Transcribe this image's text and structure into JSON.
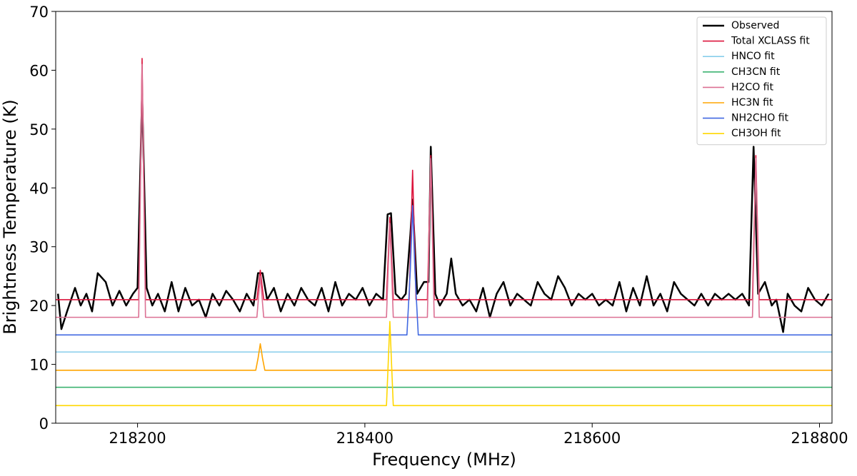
{
  "chart_data": {
    "type": "line",
    "x_label": "Frequency (MHz)",
    "y_label": "Brightness Temperature (K)",
    "xlim": [
      218128,
      218811
    ],
    "ylim": [
      0,
      70
    ],
    "xticks": [
      218200,
      218400,
      218600,
      218800
    ],
    "yticks": [
      0,
      10,
      20,
      30,
      40,
      50,
      60,
      70
    ],
    "legend": "upper right",
    "series": [
      {
        "name": "Observed",
        "color": "#000000",
        "x": [
          218130,
          218133,
          218138,
          218145,
          218150,
          218155,
          218160,
          218165,
          218172,
          218178,
          218184,
          218190,
          218196,
          218200,
          218204,
          218208,
          218213,
          218218,
          218224,
          218230,
          218236,
          218242,
          218248,
          218254,
          218260,
          218266,
          218272,
          218278,
          218284,
          218290,
          218296,
          218302,
          218306,
          218310,
          218314,
          218320,
          218326,
          218332,
          218338,
          218344,
          218350,
          218356,
          218362,
          218368,
          218374,
          218380,
          218386,
          218392,
          218398,
          218404,
          218410,
          218416,
          218420,
          218423,
          218427,
          218432,
          218436,
          218440,
          218442,
          218446,
          218452,
          218456,
          218458,
          218462,
          218466,
          218472,
          218476,
          218480,
          218486,
          218492,
          218498,
          218504,
          218510,
          218516,
          218522,
          218528,
          218534,
          218540,
          218546,
          218552,
          218558,
          218564,
          218570,
          218576,
          218582,
          218588,
          218594,
          218600,
          218606,
          218612,
          218618,
          218624,
          218630,
          218636,
          218642,
          218648,
          218654,
          218660,
          218666,
          218672,
          218678,
          218684,
          218690,
          218696,
          218702,
          218708,
          218714,
          218720,
          218726,
          218732,
          218738,
          218742,
          218746,
          218752,
          218758,
          218762,
          218768,
          218772,
          218778,
          218784,
          218790,
          218796,
          218802,
          218808
        ],
        "values": [
          22,
          16,
          19,
          23,
          20,
          22,
          19,
          25.5,
          24,
          20,
          22.5,
          20,
          22,
          23,
          56,
          23,
          20,
          22,
          19,
          24,
          19,
          23,
          20,
          21,
          18,
          22,
          20,
          22.5,
          21,
          19,
          22,
          20,
          25.5,
          25.5,
          21,
          23,
          19,
          22,
          20,
          23,
          21,
          20,
          23,
          19,
          24,
          20,
          22,
          21,
          23,
          20,
          22,
          21,
          35.5,
          35.7,
          22,
          21,
          22,
          32,
          38,
          22,
          24,
          24,
          47,
          22,
          20,
          22,
          28,
          22,
          20,
          21,
          19,
          23,
          18,
          22,
          24,
          20,
          22,
          21,
          20,
          24,
          22,
          21,
          25,
          23,
          20,
          22,
          21,
          22,
          20,
          21,
          20,
          24,
          19,
          23,
          20,
          25,
          20,
          22,
          19,
          24,
          22,
          21,
          20,
          22,
          20,
          22,
          21,
          22,
          21,
          22,
          20,
          47,
          22,
          24,
          20,
          21,
          15.5,
          22,
          20,
          19,
          23,
          21,
          20,
          22
        ]
      },
      {
        "name": "Total XCLASS fit",
        "color": "#dc143c",
        "x": [
          218128,
          218201,
          218202.5,
          218204,
          218205.5,
          218207,
          218305,
          218306.5,
          218308,
          218309.5,
          218311,
          218419,
          218420.5,
          218422,
          218423.5,
          218425,
          218439,
          218440.5,
          218442,
          218443.5,
          218445,
          218455,
          218456.5,
          218458,
          218459.5,
          218461,
          218741,
          218742.5,
          218744,
          218745.5,
          218747,
          218811
        ],
        "values": [
          21,
          21,
          41,
          62,
          41,
          21,
          21,
          23.5,
          26,
          23.5,
          21,
          21,
          28,
          35,
          28,
          21,
          21,
          32,
          43,
          32,
          21,
          21,
          33,
          45.5,
          33,
          21,
          21,
          33,
          45.5,
          33,
          21,
          21
        ]
      },
      {
        "name": "HNCO fit",
        "color": "#87ceeb",
        "x": [
          218128,
          218811
        ],
        "values": [
          12.1,
          12.1
        ]
      },
      {
        "name": "CH3CN fit",
        "color": "#3cb371",
        "x": [
          218128,
          218811
        ],
        "values": [
          6.1,
          6.1
        ]
      },
      {
        "name": "H2CO fit",
        "color": "#db7093",
        "x": [
          218128,
          218201,
          218202.5,
          218204,
          218205.5,
          218207,
          218305,
          218306.5,
          218308,
          218309.5,
          218311,
          218419,
          218420.5,
          218422,
          218423.5,
          218425,
          218455,
          218456.5,
          218458,
          218459.5,
          218461,
          218741,
          218742.5,
          218744,
          218745.5,
          218747,
          218811
        ],
        "values": [
          18,
          18,
          39,
          61,
          39,
          18,
          18,
          21.5,
          25,
          21.5,
          18,
          18,
          26,
          34,
          26,
          18,
          18,
          31,
          45,
          31,
          18,
          18,
          31,
          45,
          31,
          18,
          18
        ]
      },
      {
        "name": "HC3N fit",
        "color": "#ffa500",
        "x": [
          218128,
          218304,
          218306,
          218308,
          218310,
          218312,
          218811
        ],
        "values": [
          9,
          9,
          11,
          13.5,
          11,
          9,
          9
        ]
      },
      {
        "name": "NH2CHO fit",
        "color": "#4169e1",
        "x": [
          218128,
          218437,
          218440,
          218442,
          218444,
          218447,
          218811
        ],
        "values": [
          15,
          15,
          26,
          37,
          26,
          15,
          15
        ]
      },
      {
        "name": "CH3OH fit",
        "color": "#ffd700",
        "x": [
          218128,
          218419,
          218420.5,
          218422,
          218423.5,
          218425,
          218811
        ],
        "values": [
          3,
          3,
          10,
          17.3,
          10,
          3,
          3
        ]
      }
    ]
  }
}
